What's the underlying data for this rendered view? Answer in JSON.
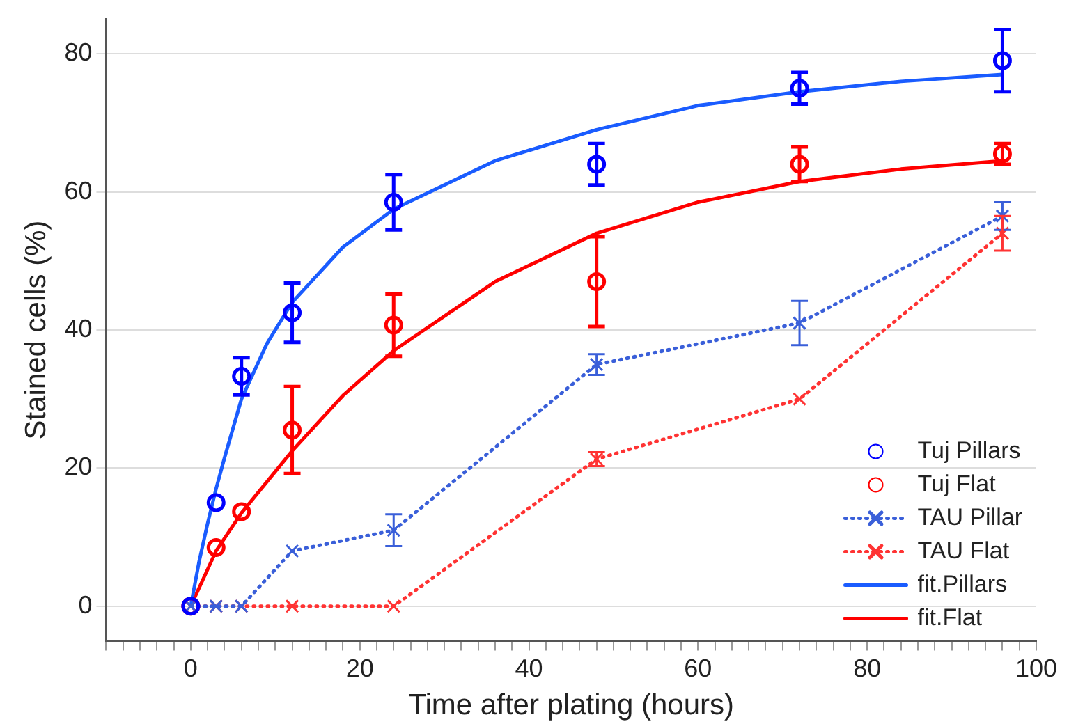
{
  "chart_data": {
    "type": "scatter",
    "xlabel": "Time after plating (hours)",
    "ylabel": "Stained cells (%)",
    "x": [
      0,
      3,
      6,
      12,
      24,
      48,
      72,
      96
    ],
    "xlim": [
      -10,
      100
    ],
    "xticks": [
      {
        "value": -10,
        "label": null
      },
      {
        "value": -8,
        "label": null
      },
      {
        "value": -6,
        "label": null
      },
      {
        "value": -4,
        "label": null
      },
      {
        "value": -2,
        "label": null
      },
      0,
      {
        "value": 2,
        "label": null
      },
      {
        "value": 4,
        "label": null
      },
      {
        "value": 6,
        "label": null
      },
      {
        "value": 8,
        "label": null
      },
      {
        "value": 10,
        "label": null
      },
      {
        "value": 12,
        "label": null
      },
      {
        "value": 14,
        "label": null
      },
      {
        "value": 16,
        "label": null
      },
      {
        "value": 18,
        "label": null
      },
      20,
      {
        "value": 22,
        "label": null
      },
      {
        "value": 24,
        "label": null
      },
      {
        "value": 26,
        "label": null
      },
      {
        "value": 28,
        "label": null
      },
      {
        "value": 30,
        "label": null
      },
      {
        "value": 32,
        "label": null
      },
      {
        "value": 34,
        "label": null
      },
      {
        "value": 36,
        "label": null
      },
      {
        "value": 38,
        "label": null
      },
      40,
      {
        "value": 42,
        "label": null
      },
      {
        "value": 44,
        "label": null
      },
      {
        "value": 46,
        "label": null
      },
      {
        "value": 48,
        "label": null
      },
      {
        "value": 50,
        "label": null
      },
      {
        "value": 52,
        "label": null
      },
      {
        "value": 54,
        "label": null
      },
      {
        "value": 56,
        "label": null
      },
      {
        "value": 58,
        "label": null
      },
      60,
      {
        "value": 62,
        "label": null
      },
      {
        "value": 64,
        "label": null
      },
      {
        "value": 66,
        "label": null
      },
      {
        "value": 68,
        "label": null
      },
      {
        "value": 70,
        "label": null
      },
      {
        "value": 72,
        "label": null
      },
      {
        "value": 74,
        "label": null
      },
      {
        "value": 76,
        "label": null
      },
      {
        "value": 78,
        "label": null
      },
      80,
      {
        "value": 82,
        "label": null
      },
      {
        "value": 84,
        "label": null
      },
      {
        "value": 86,
        "label": null
      },
      {
        "value": 88,
        "label": null
      },
      {
        "value": 90,
        "label": null
      },
      {
        "value": 92,
        "label": null
      },
      {
        "value": 94,
        "label": null
      },
      {
        "value": 96,
        "label": null
      },
      {
        "value": 98,
        "label": null
      },
      100
    ],
    "ylim": [
      -5,
      85
    ],
    "yticks": [
      0,
      20,
      40,
      60,
      80
    ],
    "grid": "y",
    "legend": "bottom right",
    "series": [
      {
        "name": "Tuj Pillars",
        "type": "scatter",
        "color": "#0000ff",
        "marker": "circle",
        "values": [
          0,
          15,
          33.3,
          42.5,
          58.5,
          64,
          75,
          79
        ],
        "errors": [
          null,
          null,
          2.7,
          4.3,
          4,
          3,
          2.3,
          4.5
        ]
      },
      {
        "name": "Tuj Flat",
        "type": "scatter",
        "color": "#ff0000",
        "marker": "circle",
        "values": [
          0,
          8.5,
          13.7,
          25.5,
          40.7,
          47,
          64,
          65.5
        ],
        "errors": [
          null,
          null,
          null,
          6.3,
          4.5,
          6.5,
          2.5,
          1.5
        ]
      },
      {
        "name": "TAU Pillar",
        "type": "line",
        "color": "#3a5fd9",
        "marker": "cross",
        "line_style": "dotted",
        "values": [
          0,
          0,
          0,
          8,
          11,
          35,
          41,
          56.5
        ],
        "errors": [
          null,
          null,
          null,
          null,
          2.3,
          1.5,
          3.2,
          2
        ]
      },
      {
        "name": "TAU Flat",
        "type": "line",
        "color": "#ff3333",
        "marker": "cross",
        "line_style": "dotted",
        "values": [
          0,
          0,
          0,
          0,
          0,
          21.3,
          30,
          54
        ],
        "errors": [
          null,
          null,
          null,
          null,
          null,
          1,
          null,
          2.5
        ]
      },
      {
        "name": "fit.Pillars",
        "type": "line",
        "color": "#1a5cff",
        "marker": "none",
        "line_style": "solid",
        "x": [
          0,
          1,
          2,
          3,
          4,
          6,
          9,
          12,
          18,
          24,
          36,
          48,
          60,
          72,
          84,
          96
        ],
        "values": [
          0,
          6.5,
          12,
          17,
          21.5,
          30,
          38,
          44,
          52,
          57.5,
          64.5,
          69,
          72.5,
          74.5,
          76,
          77
        ]
      },
      {
        "name": "fit.Flat",
        "type": "line",
        "color": "#ff0000",
        "marker": "none",
        "line_style": "solid",
        "x": [
          0,
          3,
          6,
          12,
          18,
          24,
          36,
          48,
          60,
          72,
          84,
          96
        ],
        "values": [
          0,
          8,
          13.5,
          22.5,
          30.5,
          37,
          47,
          54,
          58.5,
          61.5,
          63.3,
          64.5
        ]
      }
    ]
  }
}
